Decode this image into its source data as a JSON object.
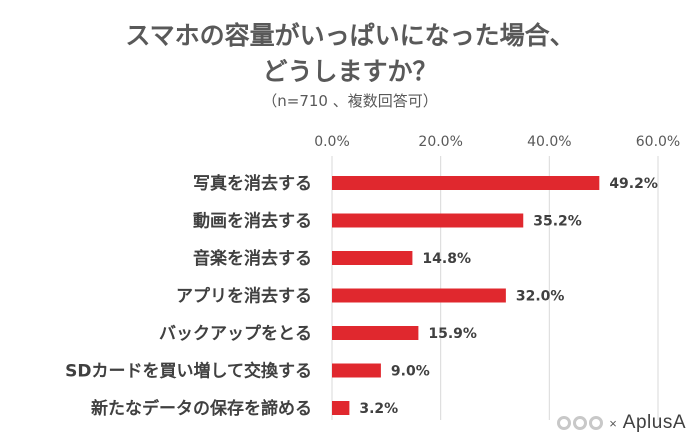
{
  "chart_data": {
    "type": "bar",
    "orientation": "horizontal",
    "title_line1": "スマホの容量がいっぱいになった場合、",
    "title_line2": "どうしますか？",
    "subtitle": "（n=710 、複数回答可）",
    "categories": [
      "写真を消去する",
      "動画を消去する",
      "音楽を消去する",
      "アプリを消去する",
      "バックアップをとる",
      "SDカードを買い増して交換する",
      "新たなデータの保存を諦める"
    ],
    "values": [
      49.2,
      35.2,
      14.8,
      32.0,
      15.9,
      9.0,
      3.2
    ],
    "value_labels": [
      "49.2%",
      "35.2%",
      "14.8%",
      "32.0%",
      "15.9%",
      "9.0%",
      "3.2%"
    ],
    "xlim": [
      0,
      60
    ],
    "ticks": [
      0,
      20,
      40,
      60
    ],
    "tick_labels": [
      "0.0%",
      "20.0%",
      "40.0%",
      "60.0%"
    ],
    "axis_position": "top",
    "grid": true,
    "bar_color": "#e0282e",
    "grid_color": "#d9d9d9"
  },
  "logo": {
    "times": "×",
    "brand": "AplusA"
  }
}
